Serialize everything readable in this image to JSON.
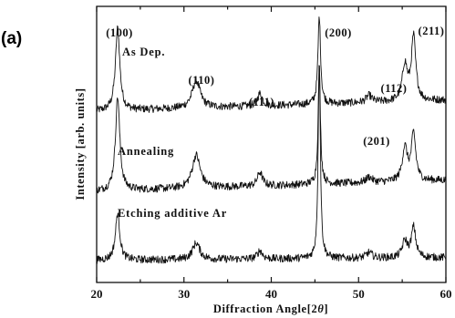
{
  "chart_data": {
    "type": "line",
    "panel_label": "(a)",
    "title": "",
    "xlabel_parts": [
      "Diffraction Angle[2",
      "θ",
      "]"
    ],
    "ylabel": "Intensity [arb. units]",
    "xlim": [
      20,
      60
    ],
    "x_ticks": [
      20,
      30,
      40,
      50,
      60
    ],
    "x_tick_labels": [
      "20",
      "30",
      "40",
      "50",
      "60"
    ],
    "y_ticks_shown": false,
    "peaks": [
      {
        "label": "(100)",
        "x": 22.4
      },
      {
        "label": "(110)",
        "x": 31.4
      },
      {
        "label": "(111)",
        "x": 38.7
      },
      {
        "label": "(200)",
        "x": 45.5
      },
      {
        "label": "(201)",
        "x": 51.2
      },
      {
        "label": "(112)",
        "x": 55.3
      },
      {
        "label": "(211)",
        "x": 56.3
      }
    ],
    "series": [
      {
        "name": "As Dep.",
        "baseline": 0.62,
        "slope": 0.04,
        "peaks": [
          {
            "x": 22.4,
            "h": 0.3,
            "w": 0.3
          },
          {
            "x": 31.4,
            "h": 0.1,
            "w": 0.55
          },
          {
            "x": 38.7,
            "h": 0.045,
            "w": 0.35
          },
          {
            "x": 45.5,
            "h": 0.32,
            "w": 0.18
          },
          {
            "x": 51.2,
            "h": 0.025,
            "w": 0.4
          },
          {
            "x": 55.3,
            "h": 0.13,
            "w": 0.35
          },
          {
            "x": 56.3,
            "h": 0.23,
            "w": 0.3
          }
        ]
      },
      {
        "name": "Annealing",
        "baseline": 0.33,
        "slope": 0.04,
        "peaks": [
          {
            "x": 22.4,
            "h": 0.34,
            "w": 0.3
          },
          {
            "x": 31.4,
            "h": 0.12,
            "w": 0.55
          },
          {
            "x": 38.7,
            "h": 0.05,
            "w": 0.35
          },
          {
            "x": 45.5,
            "h": 0.42,
            "w": 0.16
          },
          {
            "x": 51.2,
            "h": 0.02,
            "w": 0.4
          },
          {
            "x": 55.3,
            "h": 0.12,
            "w": 0.35
          },
          {
            "x": 56.3,
            "h": 0.17,
            "w": 0.3
          }
        ]
      },
      {
        "name": "Etching additive Ar",
        "baseline": 0.08,
        "slope": 0.01,
        "peaks": [
          {
            "x": 22.4,
            "h": 0.17,
            "w": 0.3
          },
          {
            "x": 31.4,
            "h": 0.06,
            "w": 0.5
          },
          {
            "x": 38.7,
            "h": 0.03,
            "w": 0.35
          },
          {
            "x": 45.5,
            "h": 0.73,
            "w": 0.15
          },
          {
            "x": 51.2,
            "h": 0.02,
            "w": 0.4
          },
          {
            "x": 55.3,
            "h": 0.06,
            "w": 0.35
          },
          {
            "x": 56.3,
            "h": 0.11,
            "w": 0.3
          }
        ]
      }
    ]
  }
}
